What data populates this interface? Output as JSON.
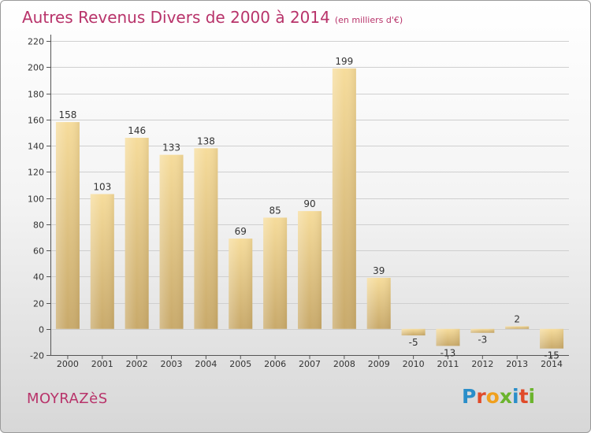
{
  "chart_data": {
    "type": "bar",
    "title": "Autres Revenus Divers de 2000 à 2014",
    "subtitle": "(en milliers d'€)",
    "categories": [
      "2000",
      "2001",
      "2002",
      "2003",
      "2004",
      "2005",
      "2006",
      "2007",
      "2008",
      "2009",
      "2010",
      "2011",
      "2012",
      "2013",
      "2014"
    ],
    "values": [
      158,
      103,
      146,
      133,
      138,
      69,
      85,
      90,
      199,
      39,
      -5,
      -13,
      -3,
      2,
      -15
    ],
    "ylim": [
      -20,
      220
    ],
    "yticks": [
      -20,
      0,
      20,
      40,
      60,
      80,
      100,
      120,
      140,
      160,
      180,
      200,
      220
    ],
    "grid": true,
    "bar_color": "#e0c27e",
    "xlabel": "",
    "ylabel": ""
  },
  "footer": {
    "town": "MOYRAZèS",
    "brand": "Proxiti"
  },
  "colors": {
    "title": "#b8336a",
    "brand_letters": [
      "#2a8ec9",
      "#e04b2a",
      "#f0a01e",
      "#6bb42d",
      "#2a8ec9",
      "#e04b2a",
      "#6bb42d"
    ]
  }
}
